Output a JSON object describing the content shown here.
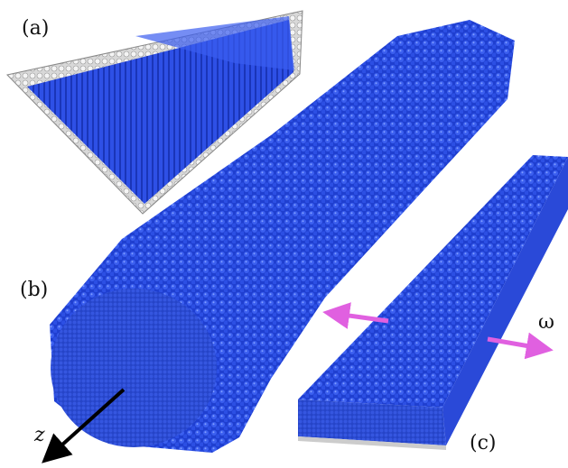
{
  "panels": [
    {
      "label": "(a)"
    },
    {
      "label": "(b)"
    },
    {
      "label": "(c)"
    }
  ],
  "axis_label": "z",
  "annotation": "ω"
}
